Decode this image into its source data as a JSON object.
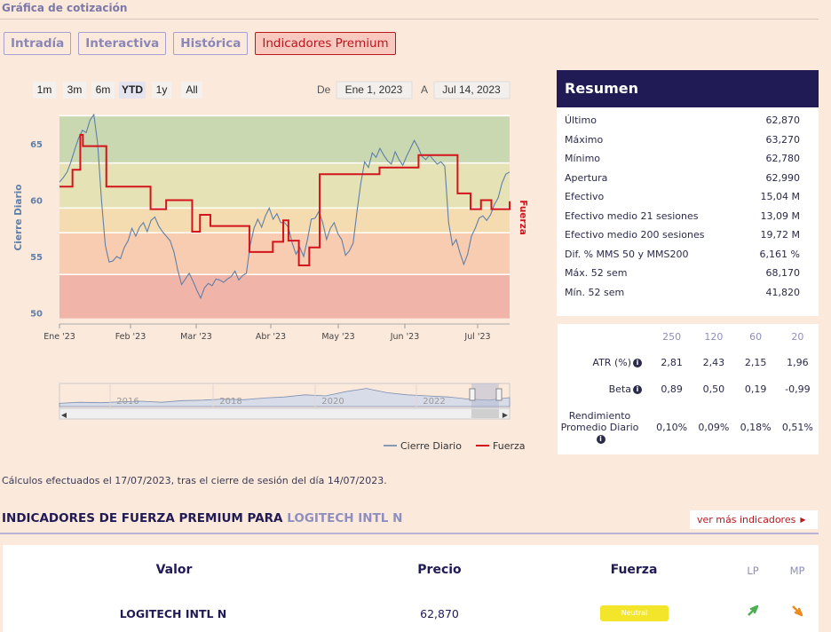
{
  "section_title": "Gráfica de cotización",
  "tabs": [
    {
      "label": "Intradía",
      "active": false
    },
    {
      "label": "Interactiva",
      "active": false
    },
    {
      "label": "Histórica",
      "active": false
    },
    {
      "label": "Indicadores Premium",
      "active": true
    }
  ],
  "range_buttons": [
    "1m",
    "3m",
    "6m",
    "YTD",
    "1y",
    "All"
  ],
  "range_selected": "YTD",
  "date_from_label": "De",
  "date_from": "Ene 1, 2023",
  "date_to_label": "A",
  "date_to": "Jul 14, 2023",
  "chart_data": {
    "type": "line",
    "ylabel": "Cierre Diario",
    "y2label": "Fuerza",
    "yticks": [
      "65",
      "60",
      "55",
      "50"
    ],
    "ylim": [
      49,
      68
    ],
    "xticks": [
      "Ene '23",
      "Feb '23",
      "Mar '23",
      "Abr '23",
      "May '23",
      "Jun '23",
      "Jul '23"
    ],
    "bands": [
      {
        "from": 63.3,
        "to": 67.5,
        "color": "#c9d8b0"
      },
      {
        "from": 59.3,
        "to": 63.3,
        "color": "#e5e2b6"
      },
      {
        "from": 57.1,
        "to": 59.3,
        "color": "#f4dcb0"
      },
      {
        "from": 53.4,
        "to": 57.1,
        "color": "#f7ccb0"
      },
      {
        "from": 49.5,
        "to": 53.4,
        "color": "#f0b5a8"
      }
    ],
    "series": [
      {
        "name": "Cierre Diario",
        "color": "#5f7fa8",
        "values": [
          61.6,
          62.0,
          62.5,
          63.4,
          64.5,
          65.5,
          66.2,
          66.0,
          67.1,
          67.6,
          65.0,
          60.0,
          56.0,
          54.5,
          54.6,
          55.0,
          54.8,
          55.8,
          56.4,
          57.5,
          56.8,
          57.6,
          58.0,
          57.2,
          58.2,
          58.5,
          57.7,
          57.2,
          56.8,
          56.4,
          55.4,
          53.8,
          52.5,
          53.0,
          53.5,
          52.8,
          52.0,
          51.3,
          52.2,
          52.6,
          52.4,
          53.0,
          52.9,
          52.7,
          53.0,
          53.2,
          53.7,
          52.9,
          53.3,
          53.5,
          56.0,
          57.5,
          58.3,
          57.6,
          58.6,
          59.3,
          58.3,
          58.8,
          58.0,
          58.0,
          57.6,
          56.2,
          55.2,
          55.8,
          55.0,
          56.5,
          58.3,
          58.4,
          59.0,
          58.0,
          56.5,
          57.5,
          58.0,
          57.0,
          56.5,
          55.1,
          55.5,
          56.2,
          59.0,
          61.5,
          63.4,
          62.9,
          64.2,
          63.8,
          64.6,
          64.0,
          63.5,
          63.2,
          64.3,
          63.6,
          63.1,
          63.9,
          64.6,
          65.3,
          64.7,
          63.9,
          63.6,
          64.0,
          63.6,
          63.2,
          63.4,
          63.0,
          58.0,
          56.0,
          56.5,
          55.3,
          54.3,
          55.2,
          56.8,
          57.5,
          58.4,
          58.6,
          58.2,
          58.7,
          59.6,
          60.2,
          61.5,
          62.3,
          62.5
        ]
      },
      {
        "name": "Fuerza",
        "color": "#d4141c",
        "steps": [
          [
            0,
            61.2
          ],
          [
            5,
            62.7
          ],
          [
            8,
            65.8
          ],
          [
            9,
            64.8
          ],
          [
            18,
            61.2
          ],
          [
            35,
            59.2
          ],
          [
            41,
            60.0
          ],
          [
            51,
            57.2
          ],
          [
            54,
            58.7
          ],
          [
            58,
            57.7
          ],
          [
            73,
            55.4
          ],
          [
            82,
            56.3
          ],
          [
            86,
            58.2
          ],
          [
            88,
            56.4
          ],
          [
            92,
            54.2
          ],
          [
            96,
            55.8
          ],
          [
            100,
            62.3
          ],
          [
            123,
            62.9
          ],
          [
            138,
            64.0
          ],
          [
            153,
            60.6
          ],
          [
            158,
            59.2
          ],
          [
            162,
            60.0
          ],
          [
            166,
            59.2
          ],
          [
            173,
            59.9
          ]
        ]
      }
    ]
  },
  "navigator": {
    "years": [
      "2016",
      "2018",
      "2020",
      "2022"
    ]
  },
  "legend": [
    "Cierre Diario",
    "Fuerza"
  ],
  "summary": {
    "title": "Resumen",
    "rows": [
      {
        "label": "Último",
        "value": "62,870"
      },
      {
        "label": "Máximo",
        "value": "63,270"
      },
      {
        "label": "Mínimo",
        "value": "62,780"
      },
      {
        "label": "Apertura",
        "value": "62,990"
      },
      {
        "label": "Efectivo",
        "value": "15,04 M"
      },
      {
        "label": "Efectivo medio 21 sesiones",
        "value": "13,09 M"
      },
      {
        "label": "Efectivo medio 200 sesiones",
        "value": "19,72 M"
      },
      {
        "label": "Dif. % MMS 50 y MMS200",
        "value": "6,161 %"
      },
      {
        "label": "Máx. 52 sem",
        "value": "68,170"
      },
      {
        "label": "Mín. 52 sem",
        "value": "41,820"
      }
    ]
  },
  "stats": {
    "columns": [
      "250",
      "120",
      "60",
      "20"
    ],
    "rows": [
      {
        "label": "ATR (%)",
        "values": [
          "2,81",
          "2,43",
          "2,15",
          "1,96"
        ]
      },
      {
        "label": "Beta",
        "values": [
          "0,89",
          "0,50",
          "0,19",
          "-0,99"
        ]
      },
      {
        "label": "Rendimiento Promedio Diario",
        "values": [
          "0,10%",
          "0,09%",
          "0,18%",
          "0,51%"
        ]
      }
    ]
  },
  "calc_note": "Cálculos efectuados el 17/07/2023, tras el cierre de sesión del día 14/07/2023.",
  "indicators": {
    "title_prefix": "INDICADORES DE FUERZA PREMIUM PARA",
    "company": "LOGITECH INTL N",
    "more_label": "ver más indicadores",
    "headers": {
      "valor": "Valor",
      "precio": "Precio",
      "fuerza": "Fuerza",
      "lp": "LP",
      "mp": "MP"
    },
    "row": {
      "name": "LOGITECH INTL N",
      "price": "62,870",
      "fuerza": "Neutral"
    },
    "colors": {
      "lp_arrow": "#4caf50",
      "mp_arrow": "#f08a1c"
    }
  }
}
